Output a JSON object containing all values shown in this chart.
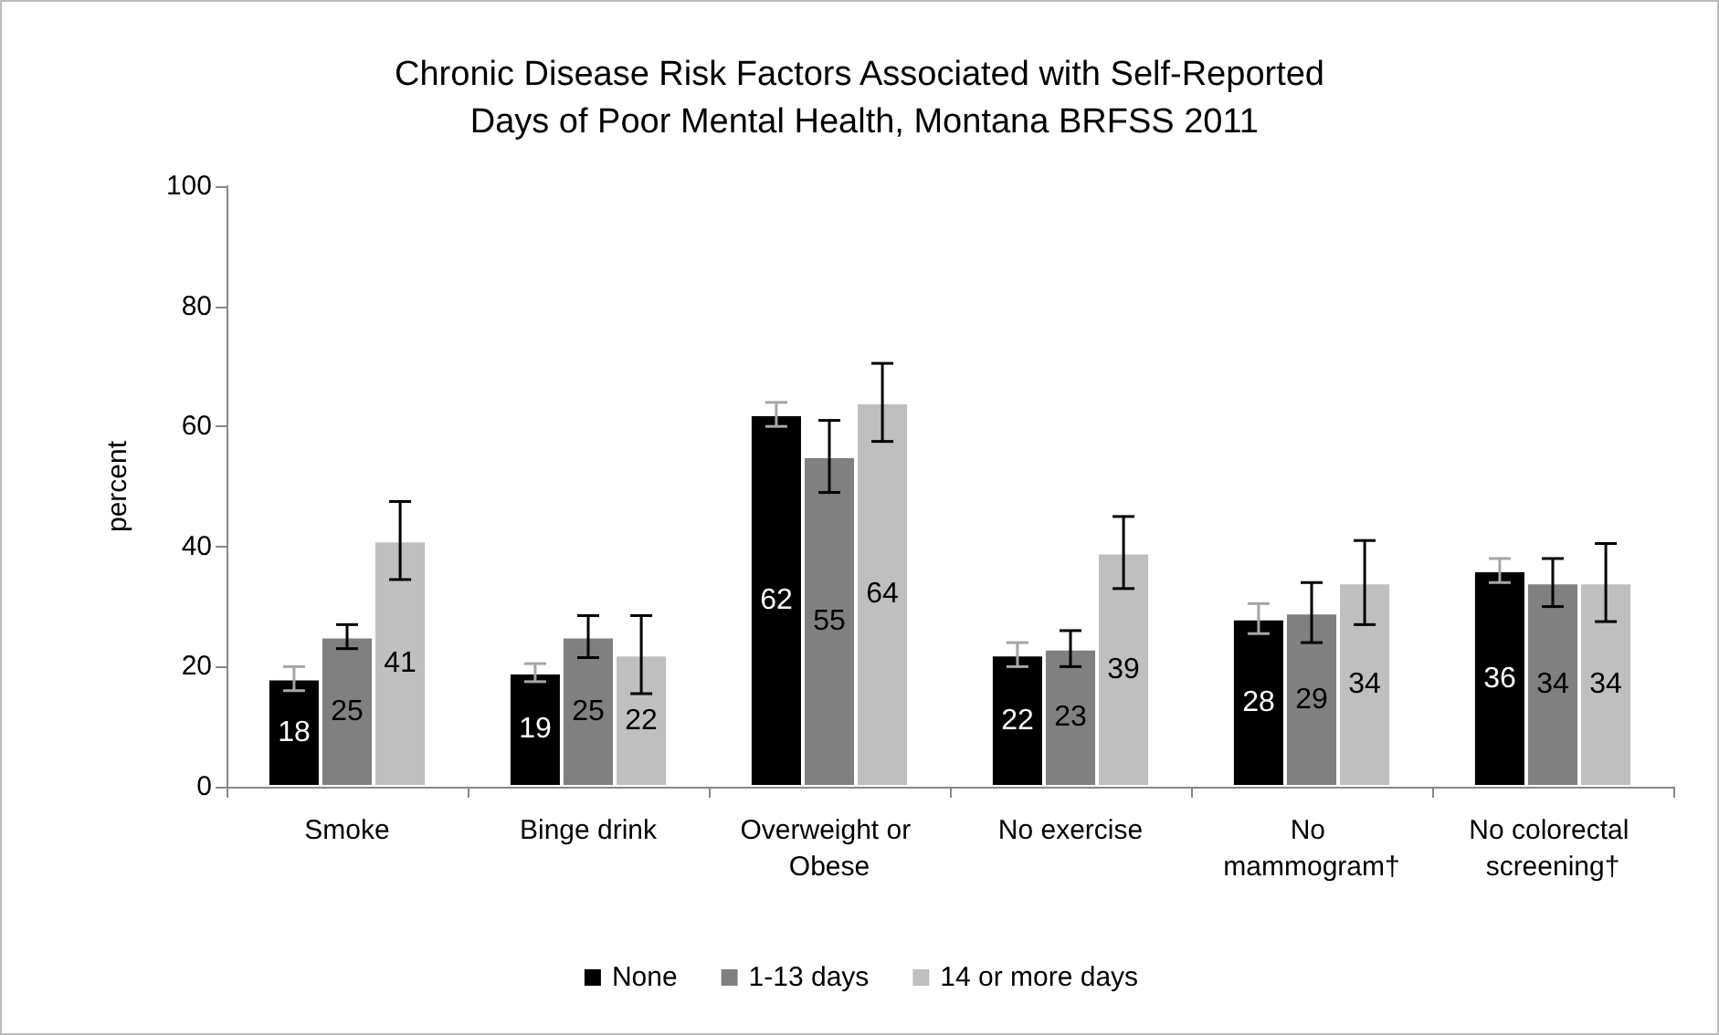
{
  "chart_data": {
    "type": "bar",
    "title": "Chronic Disease Risk Factors Associated with Self-Reported Days of Poor Mental Health, Montana BRFSS 2011",
    "categories": [
      "Smoke",
      "Binge drink",
      "Overweight or Obese",
      "No exercise",
      "No mammogram†",
      "No colorectal screening†"
    ],
    "series": [
      {
        "name": "None",
        "color": "#000000",
        "values": [
          18,
          19,
          62,
          22,
          28,
          36
        ],
        "errors": [
          [
            16,
            20
          ],
          [
            17.5,
            20.5
          ],
          [
            60,
            64
          ],
          [
            20,
            24
          ],
          [
            25.5,
            30.5
          ],
          [
            34,
            38
          ]
        ]
      },
      {
        "name": "1-13 days",
        "color": "#808080",
        "values": [
          25,
          25,
          55,
          23,
          29,
          34
        ],
        "errors": [
          [
            23,
            27
          ],
          [
            21.5,
            28.5
          ],
          [
            49,
            61
          ],
          [
            20,
            26
          ],
          [
            24,
            34
          ],
          [
            30,
            38
          ]
        ]
      },
      {
        "name": "14 or more days",
        "color": "#bfbfbf",
        "values": [
          41,
          22,
          64,
          39,
          34,
          34
        ],
        "errors": [
          [
            34.5,
            47.5
          ],
          [
            15.5,
            28.5
          ],
          [
            57.5,
            70.5
          ],
          [
            33,
            45
          ],
          [
            27,
            41
          ],
          [
            27.5,
            40.5
          ]
        ]
      }
    ],
    "ylabel": "percent",
    "ylim": [
      0,
      100
    ],
    "yticks": [
      0,
      20,
      40,
      60,
      80,
      100
    ],
    "grid": false,
    "legend": "bottom",
    "data_labels": true
  }
}
